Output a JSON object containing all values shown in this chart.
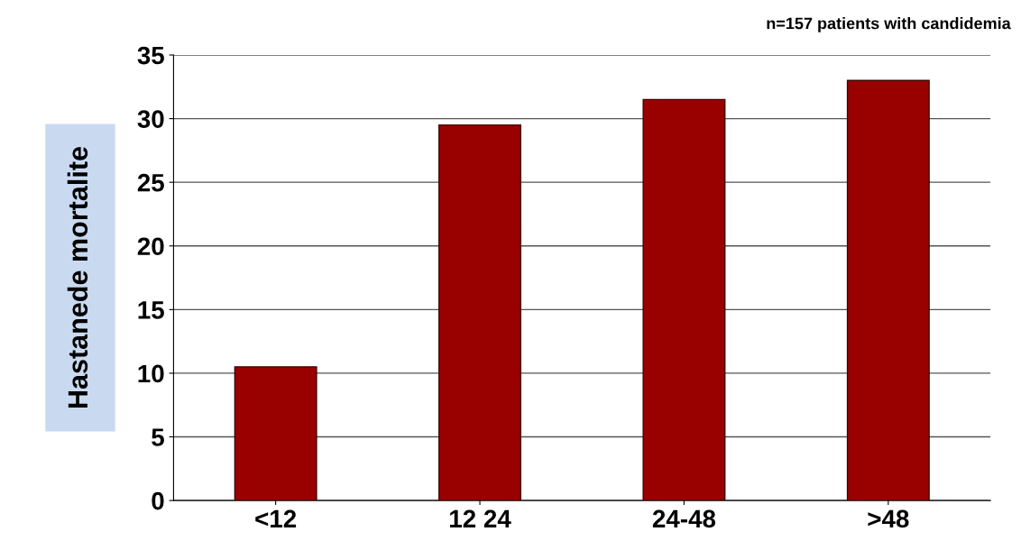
{
  "chart_data": {
    "type": "bar",
    "categories": [
      "<12",
      "12 24",
      "24-48",
      ">48"
    ],
    "values": [
      10.5,
      29.5,
      31.5,
      33
    ],
    "color": "#990000",
    "ylabel": "Hastanede mortalite",
    "annotations": [
      "n=157 patients with candidemia"
    ],
    "ylim": [
      0,
      35
    ],
    "yticks": [
      0,
      5,
      10,
      15,
      20,
      25,
      30,
      35
    ],
    "grid": "y"
  }
}
